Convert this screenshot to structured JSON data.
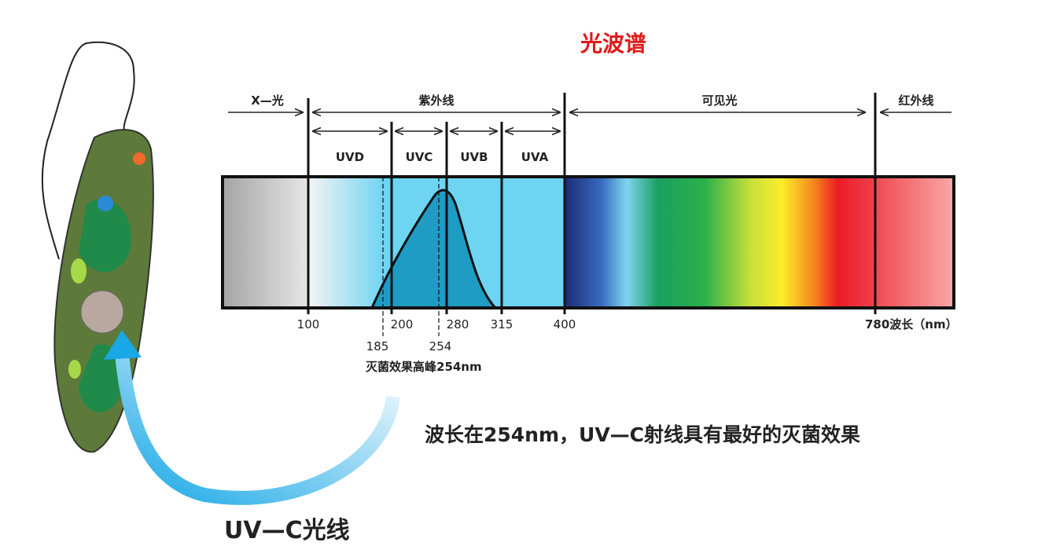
{
  "title": "光波谱",
  "regions": {
    "xray": "X—光",
    "uv": "紫外线",
    "visible": "可见光",
    "infrared": "红外线"
  },
  "bands": [
    "UVD",
    "UVC",
    "UVB",
    "UVA"
  ],
  "ticks": [
    "100",
    "200",
    "280",
    "315",
    "400",
    "780波长（nm）"
  ],
  "lower_ticks": [
    "185",
    "254"
  ],
  "peak_caption": "灭菌效果高峰254nm",
  "statement": "波长在254nm，UV—C射线具有最好的灭菌效果",
  "uvc_label": "UV—C光线"
}
